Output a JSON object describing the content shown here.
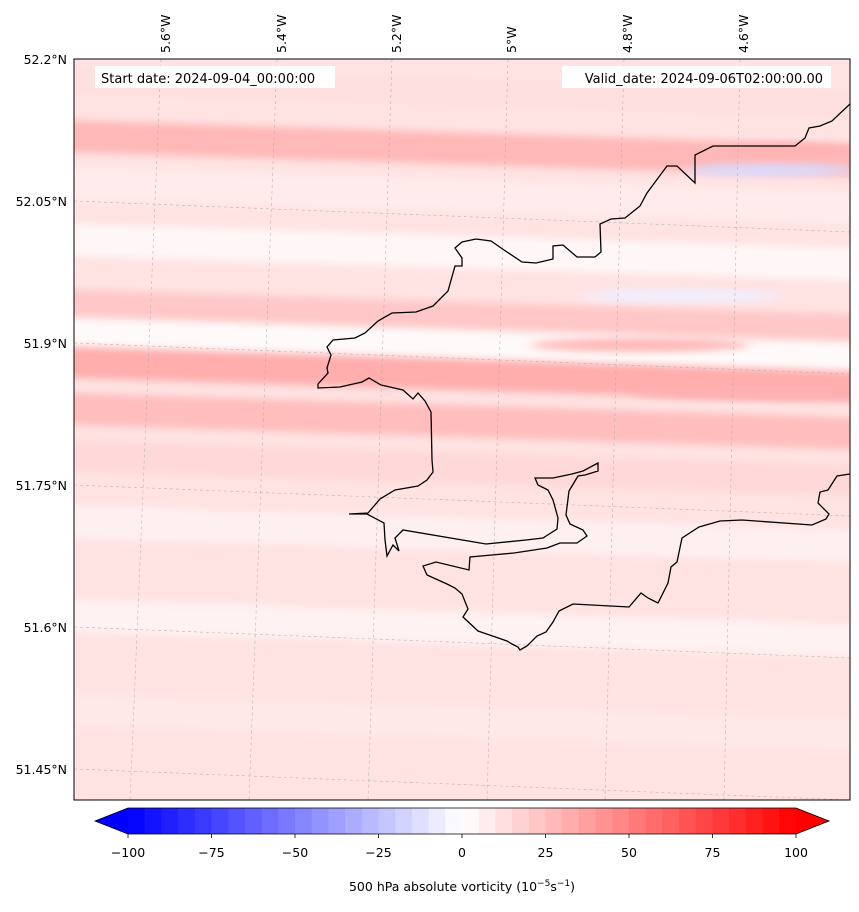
{
  "header": {
    "start_date": "Start date: 2024-09-04_00:00:00",
    "valid_date": "Valid_date: 2024-09-06T02:00:00.00"
  },
  "longitude_labels": [
    "5.6°W",
    "5.4°W",
    "5.2°W",
    "5°W",
    "4.8°W",
    "4.6°W"
  ],
  "latitude_labels": [
    "52.2°N",
    "52.05°N",
    "51.9°N",
    "51.75°N",
    "51.6°N",
    "51.45°N"
  ],
  "colorbar": {
    "ticks": [
      "−100",
      "−75",
      "−50",
      "−25",
      "0",
      "25",
      "50",
      "75",
      "100"
    ],
    "label_prefix": "500 hPa absolute vorticity (10",
    "label_exp1": "−5",
    "label_mid": "s",
    "label_exp2": "−1",
    "label_suffix": ")",
    "min": -100,
    "max": 100,
    "n_levels": 41
  },
  "colors": {
    "negative_end": "#0000ff",
    "positive_end": "#ff0000",
    "neutral": "#ffffff",
    "coastline": "#000000"
  },
  "chart_data": {
    "type": "heatmap",
    "title": "",
    "variable": "500 hPa absolute vorticity",
    "units": "10^-5 s^-1",
    "value_range": [
      -100,
      100
    ],
    "lon_ticks": [
      -5.6,
      -5.4,
      -5.2,
      -5.0,
      -4.8,
      -4.6
    ],
    "lat_ticks": [
      52.2,
      52.05,
      51.9,
      51.75,
      51.6,
      51.45
    ],
    "bands": [
      {
        "lat": 52.17,
        "value": 12
      },
      {
        "lat": 52.11,
        "value": 28
      },
      {
        "lat": 52.06,
        "value": 8
      },
      {
        "lat": 52.0,
        "value": 3
      },
      {
        "lat": 51.93,
        "value": 22
      },
      {
        "lat": 51.9,
        "value": 2
      },
      {
        "lat": 51.87,
        "value": 32
      },
      {
        "lat": 51.82,
        "value": 26
      },
      {
        "lat": 51.77,
        "value": 15
      },
      {
        "lat": 51.7,
        "value": 6
      },
      {
        "lat": 51.6,
        "value": 5
      },
      {
        "lat": 51.5,
        "value": 9
      },
      {
        "lat": 51.45,
        "value": 11
      }
    ]
  }
}
